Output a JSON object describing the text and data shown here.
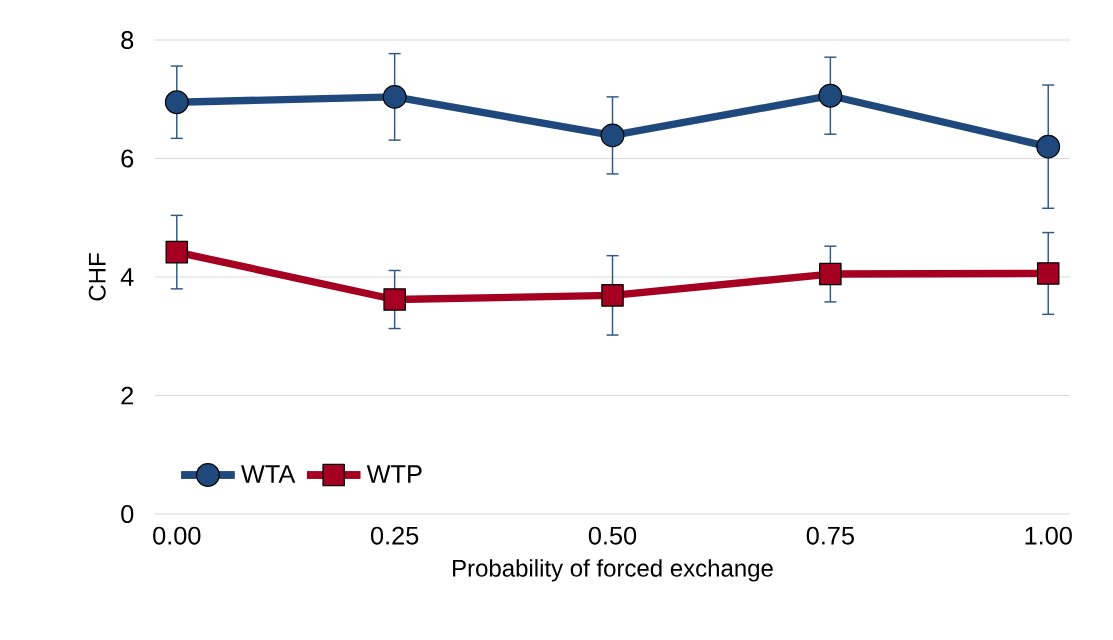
{
  "chart_data": {
    "type": "line",
    "xlabel": "Probability of forced exchange",
    "ylabel": "CHF",
    "categories": [
      "0.00",
      "0.25",
      "0.50",
      "0.75",
      "1.00"
    ],
    "ylim": [
      0,
      8
    ],
    "yticks": [
      0,
      2,
      4,
      6,
      8
    ],
    "grid": "y",
    "legend": "bottom left",
    "series": [
      {
        "name": "WTA",
        "color": "#1f497d",
        "marker": "circle",
        "values": [
          6.95,
          7.04,
          6.39,
          7.06,
          6.2
        ],
        "errors": [
          0.61,
          0.73,
          0.65,
          0.65,
          1.04
        ]
      },
      {
        "name": "WTP",
        "color": "#a50021",
        "marker": "square",
        "values": [
          4.42,
          3.62,
          3.69,
          4.05,
          4.06
        ],
        "errors": [
          0.62,
          0.49,
          0.67,
          0.47,
          0.69
        ]
      }
    ]
  }
}
